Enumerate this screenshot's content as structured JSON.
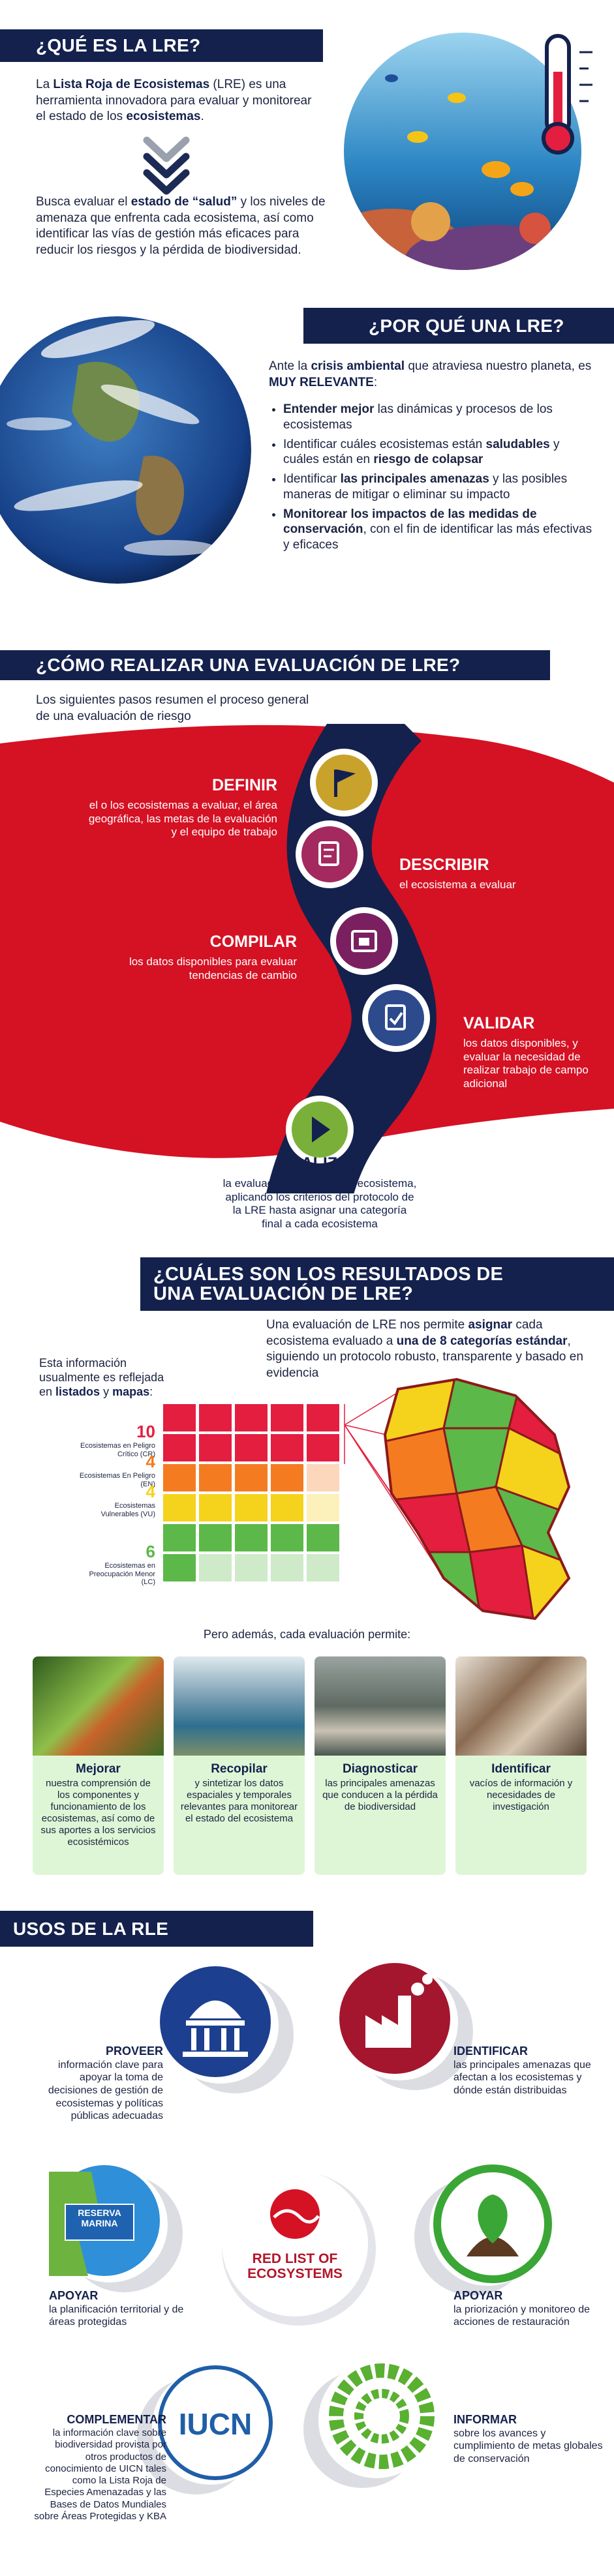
{
  "que_es": {
    "title": "¿QUÉ ES LA LRE?",
    "p1": [
      "La ",
      "Lista Roja de Ecosistemas",
      " (LRE) es una herramienta innovadora para evaluar y monitorear el estado de los ",
      "ecosistemas",
      "."
    ],
    "p2": [
      "Busca evaluar el ",
      "estado de “salud”",
      " y los niveles de amenaza que enfrenta cada ecosistema, así como identificar las vías de gestión más eficaces para reducir los riesgos y la pérdida de biodiversidad."
    ]
  },
  "por_que": {
    "title": "¿POR QUÉ UNA LRE?",
    "intro": [
      "Ante la ",
      "crisis ambiental",
      " que atraviesa nuestro planeta, es ",
      "MUY RELEVANTE",
      ":"
    ],
    "bullets": [
      [
        "Entender mejor",
        " las dinámicas y procesos de los ecosistemas"
      ],
      [
        "Identificar cuáles ecosistemas están ",
        "saludables",
        " y cuáles están en ",
        "riesgo de colapsar"
      ],
      [
        "Identificar ",
        "las principales amenazas",
        " y las posibles maneras de mitigar o eliminar su impacto"
      ],
      [
        "Monitorear los impactos de las medidas de conservación",
        ", con el fin de identificar las más efectivas y eficaces"
      ]
    ]
  },
  "como": {
    "title": "¿CÓMO REALIZAR UNA EVALUACIÓN DE LRE?",
    "intro": "Los siguientes pasos resumen el proceso general de una evaluación de riesgo",
    "steps": [
      {
        "title": "DEFINIR",
        "text": "el o los ecosistemas a evaluar, el área geográfica, las metas de la evaluación y el equipo de trabajo"
      },
      {
        "title": "DESCRIBIR",
        "text": "el ecosistema a evaluar"
      },
      {
        "title": "COMPILAR",
        "text": "los datos disponibles para evaluar tendencias de cambio"
      },
      {
        "title": "VALIDAR",
        "text": "los datos disponibles, y evaluar la necesidad de realizar trabajo de campo adicional"
      },
      {
        "title": "REALIZAR",
        "text": "la evaluación de riesgo del ecosistema, aplicando los criterios del protocolo de la LRE hasta asignar una categoría final a cada ecosistema"
      }
    ]
  },
  "resultados": {
    "title": "¿CUÁLES SON LOS RESULTADOS DE UNA EVALUACIÓN DE LRE?",
    "intro": [
      "Una evaluación de LRE nos permite ",
      "asignar",
      " cada ecosistema evaluado a ",
      "una de 8 categorías estándar",
      ", siguiendo un protocolo robusto, transparente y basado en evidencia"
    ],
    "side": [
      "Esta información usualmente es reflejada en ",
      "listados",
      " y ",
      "mapas",
      ":"
    ],
    "categories": [
      {
        "count": 10,
        "label": "Ecosistemas en Peligro Crítico (CR)",
        "color": "#e41e3f"
      },
      {
        "count": 4,
        "label": "Ecosistemas En Peligro (EN)",
        "color": "#f47b20"
      },
      {
        "count": 4,
        "label": "Ecosistemas Vulnerables (VU)",
        "color": "#f5d21c"
      },
      {
        "count": 6,
        "label": "Ecosistemas en Preocupación Menor (LC)",
        "color": "#5cb848"
      }
    ],
    "more": "Pero además, cada evaluación permite:",
    "cards": [
      {
        "title": "Mejorar",
        "text": "nuestra comprensión de los componentes y funcionamiento de los ecosistemas, así como de sus aportes a los servicios ecosistémicos"
      },
      {
        "title": "Recopilar",
        "text": "y sintetizar los datos espaciales y temporales relevantes para monitorear el estado del ecosistema"
      },
      {
        "title": "Diagnosticar",
        "text": "las principales amenazas que conducen a la pérdida de biodiversidad"
      },
      {
        "title": "Identificar",
        "text": "vacíos de información y necesidades de investigación"
      }
    ]
  },
  "usos": {
    "title": "USOS DE LA RLE",
    "items": [
      {
        "title": "PROVEER",
        "text": "información clave para apoyar la toma de decisiones de gestión de ecosistemas y políticas públicas adecuadas"
      },
      {
        "title": "IDENTIFICAR",
        "text": "las principales amenazas que afectan a los ecosistemas y dónde están distribuidas"
      },
      {
        "title": "APOYAR",
        "text": "la planificación territorial y de áreas protegidas"
      },
      {
        "title": "APOYAR",
        "text": "la priorización y monitoreo de acciones de restauración"
      },
      {
        "title": "COMPLEMENTAR",
        "text": "la información clave sobre biodiversidad provista por otros productos de conocimiento de UICN tales como la Lista Roja de Especies Amenazadas y las Bases de Datos Mundiales sobre Áreas Protegidas y KBA"
      },
      {
        "title": "INFORMAR",
        "text": "sobre los avances y cumplimiento de metas globales de conservación"
      }
    ],
    "logo": [
      "RED LIST OF",
      "ECOSYSTEMS"
    ],
    "iucn": "IUCN",
    "reserva": [
      "RESERVA",
      "MARINA"
    ]
  }
}
